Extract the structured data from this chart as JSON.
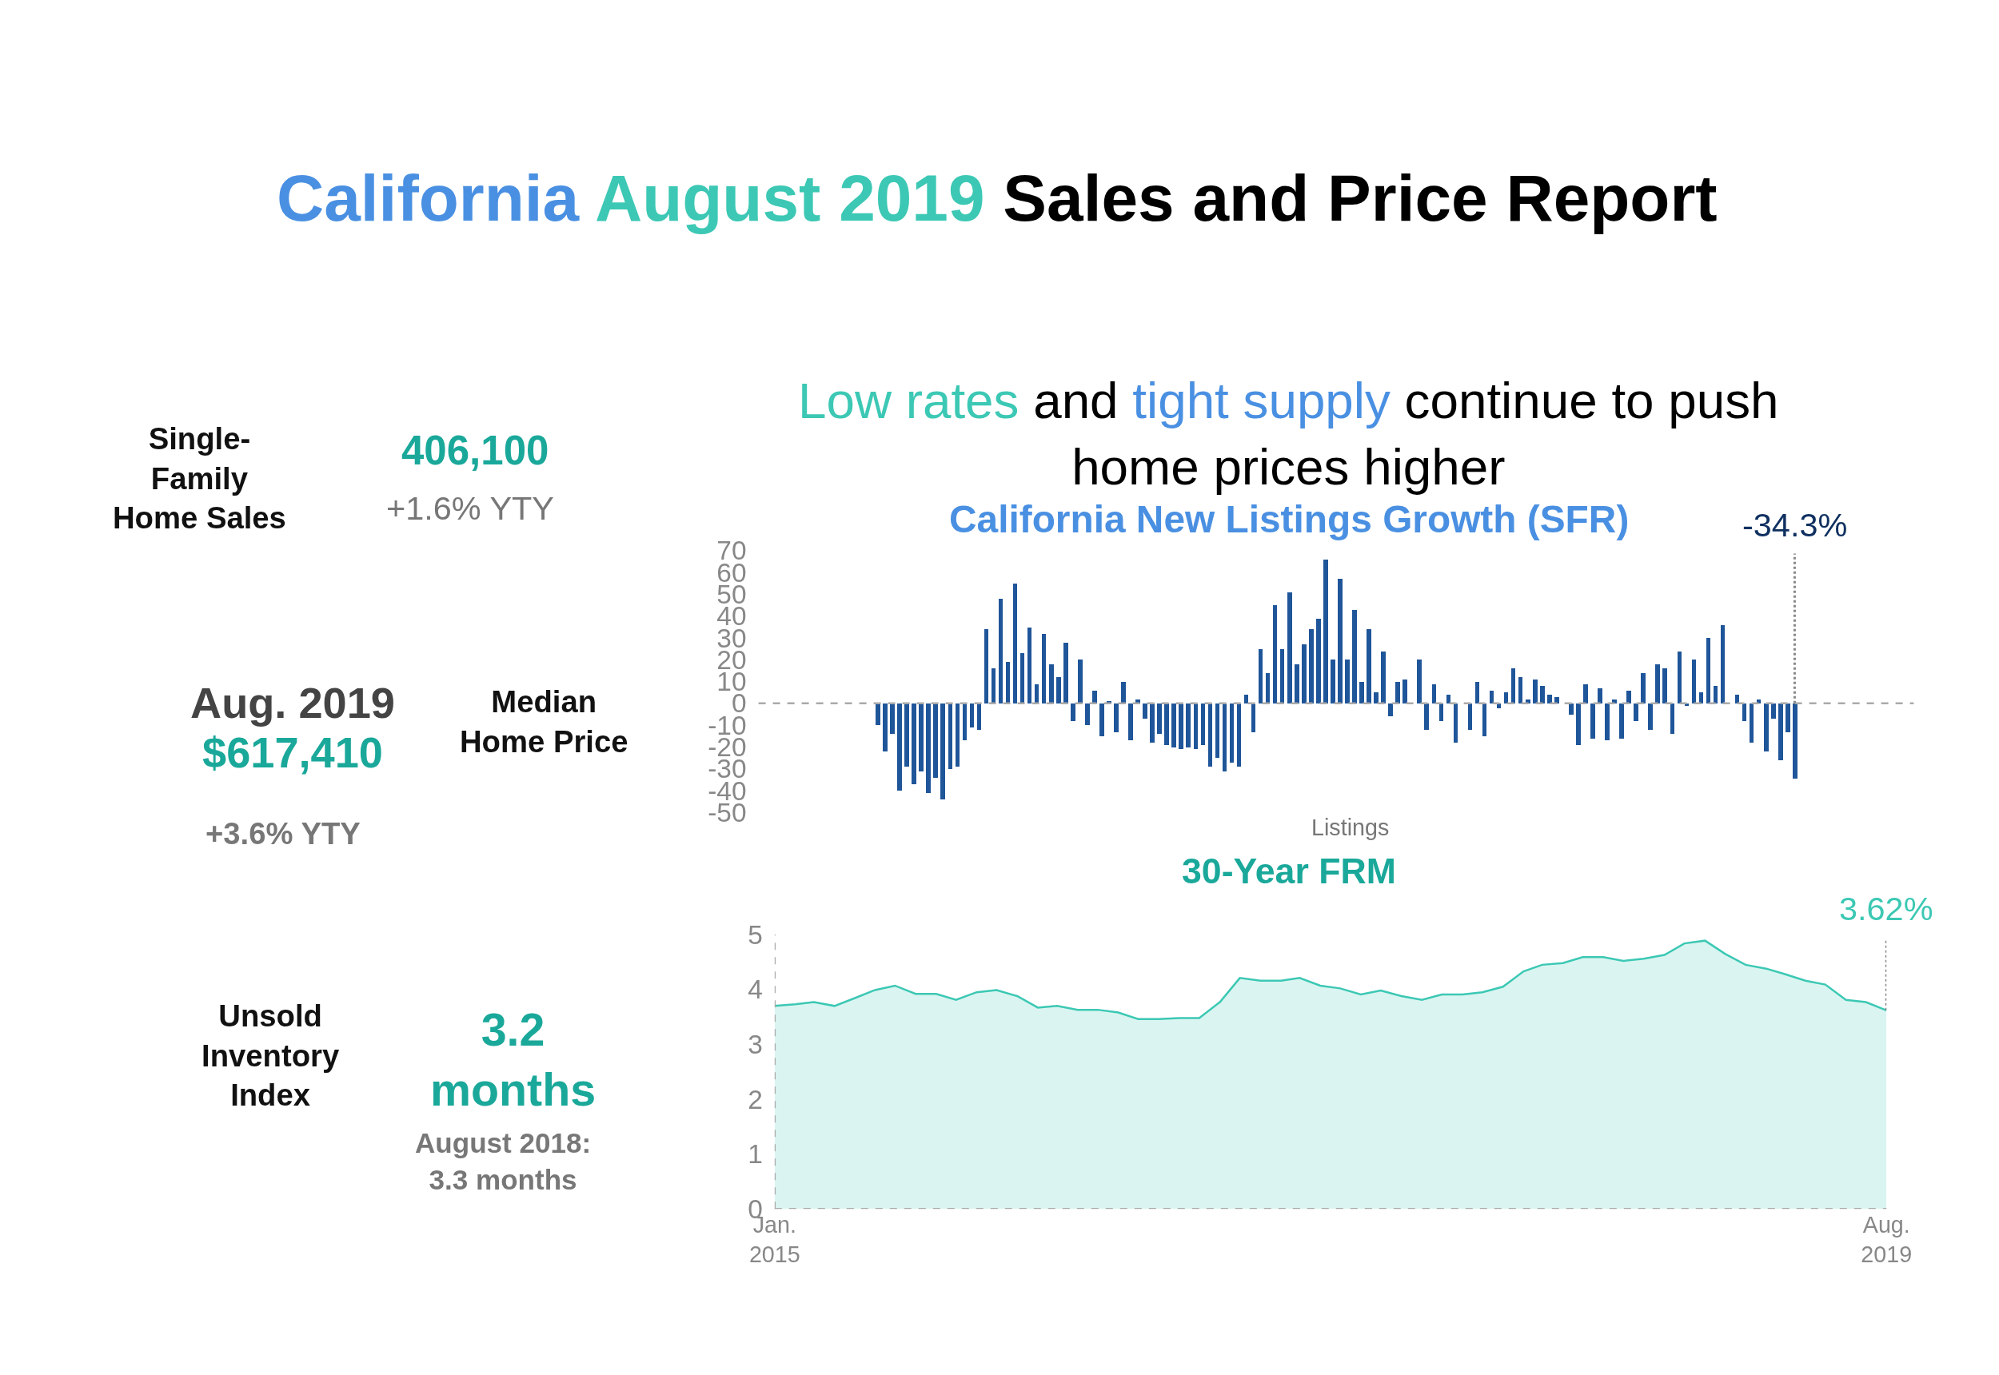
{
  "chart_data": [
    {
      "type": "other",
      "title": "California August 2019 Sales and Price Report",
      "annotations": [
        "Single-\nFamily\nHome Sales",
        "406,100",
        "+1.6% YTY",
        "Aug. 2019",
        "$617,410",
        "Median\nHome Price",
        "+3.6% YTY",
        "Unsold\nInventory\nIndex",
        "3.2\nmonths",
        "August 2018:\n3.3 months"
      ]
    },
    {
      "type": "bar",
      "subtitle": "Low rates and tight supply continue to push\nhome prices higher",
      "title": "California New Listings Growth (SFR)",
      "xlabel": "Listings",
      "categories": [
        null,
        null,
        null,
        null,
        null,
        null,
        null,
        null,
        null,
        null,
        null,
        null,
        null,
        null,
        null,
        null,
        null,
        null,
        null,
        null,
        null,
        null,
        null,
        null,
        null,
        null,
        null,
        null,
        null,
        null,
        null,
        null,
        null,
        null,
        null,
        null,
        null,
        null,
        null,
        null,
        null,
        null,
        null,
        null,
        null,
        null,
        null,
        null,
        null,
        null,
        null,
        null,
        null,
        null,
        null,
        null,
        null,
        null,
        null,
        null,
        null,
        null,
        null,
        null,
        null,
        null,
        null,
        null,
        null,
        null,
        null,
        null,
        null,
        null,
        null,
        null,
        null,
        null,
        null,
        null,
        null,
        null,
        null,
        null,
        null,
        null,
        null,
        null,
        null,
        null,
        null,
        null,
        null,
        null,
        null,
        null,
        null,
        null,
        null,
        null,
        null,
        null,
        null,
        null,
        null,
        null,
        null,
        null,
        null,
        null,
        null,
        null,
        null,
        null,
        null,
        null,
        null,
        null,
        null,
        null,
        null,
        null,
        null,
        null,
        null,
        null,
        null,
        null,
        null,
        null,
        null,
        null,
        null,
        null,
        null,
        null,
        null,
        null,
        null,
        null,
        null,
        null,
        null,
        null,
        null,
        null,
        null,
        null,
        null,
        null,
        null,
        null,
        null,
        null,
        null,
        null,
        null,
        null,
        null,
        null
      ],
      "series": [
        {
          "color": "#1f5599",
          "values": [
            null,
            null,
            null,
            null,
            null,
            null,
            null,
            null,
            null,
            null,
            null,
            null,
            null,
            null,
            null,
            null,
            -10,
            -22,
            -14,
            -40,
            -29,
            -37,
            -31,
            -41,
            -34,
            -44,
            -30,
            -29,
            -17,
            -11,
            -12,
            34,
            16,
            48,
            19,
            55,
            23,
            35,
            9,
            32,
            18,
            12,
            28,
            -8,
            20,
            -10,
            6,
            -15,
            1,
            -13,
            10,
            -17,
            2,
            -7,
            -18,
            -14,
            -19,
            -20,
            -21,
            -20,
            -21,
            -19,
            -29,
            -25,
            -31,
            -27,
            -29,
            4,
            -13,
            25,
            14,
            45,
            25,
            51,
            18,
            27,
            34,
            39,
            66,
            20,
            57,
            20,
            43,
            10,
            34,
            5,
            24,
            -6,
            10,
            11,
            0,
            20,
            -12,
            9,
            -8,
            4,
            -18,
            0,
            -12,
            10,
            -15,
            6,
            -2,
            5,
            16,
            12,
            2,
            11,
            8,
            4,
            3,
            0,
            -5,
            -19,
            9,
            -16,
            7,
            -17,
            2,
            -16,
            6,
            -8,
            14,
            -12,
            18,
            16,
            -14,
            24,
            -1,
            20,
            5,
            30,
            8,
            36,
            0,
            4,
            -8,
            -18,
            2,
            -22,
            -7,
            -26,
            -13,
            -34.3,
            null,
            null,
            null,
            null,
            null,
            null,
            null,
            null,
            null,
            null,
            null,
            null,
            null,
            null,
            null,
            null
          ]
        }
      ],
      "ylim": [
        -50,
        70
      ],
      "yticks": [
        -50,
        -40,
        -30,
        -20,
        -10,
        0,
        10,
        20,
        30,
        40,
        50,
        60,
        70
      ],
      "ref_lines": [
        {
          "axis": "y",
          "value": 0,
          "color": "#aaaaaa",
          "line_style": "dashed"
        }
      ],
      "annotations": [
        "-34.3%"
      ]
    },
    {
      "type": "area",
      "title": "30-Year FRM",
      "x": [
        "2015-01",
        "2015-02",
        "2015-03",
        "2015-04",
        "2015-05",
        "2015-06",
        "2015-07",
        "2015-08",
        "2015-09",
        "2015-10",
        "2015-11",
        "2015-12",
        "2016-01",
        "2016-02",
        "2016-03",
        "2016-04",
        "2016-05",
        "2016-06",
        "2016-07",
        "2016-08",
        "2016-09",
        "2016-10",
        "2016-11",
        "2016-12",
        "2017-01",
        "2017-02",
        "2017-03",
        "2017-04",
        "2017-05",
        "2017-06",
        "2017-07",
        "2017-08",
        "2017-09",
        "2017-10",
        "2017-11",
        "2017-12",
        "2018-01",
        "2018-02",
        "2018-03",
        "2018-04",
        "2018-05",
        "2018-06",
        "2018-07",
        "2018-08",
        "2018-09",
        "2018-10",
        "2018-11",
        "2018-12",
        "2019-01",
        "2019-02",
        "2019-03",
        "2019-04",
        "2019-05",
        "2019-06",
        "2019-07",
        "2019-08"
      ],
      "series": [
        {
          "color": "#3cc8b4",
          "values": [
            3.7,
            3.73,
            3.77,
            3.7,
            3.84,
            3.99,
            4.07,
            3.92,
            3.92,
            3.81,
            3.95,
            3.99,
            3.88,
            3.67,
            3.7,
            3.63,
            3.63,
            3.58,
            3.46,
            3.46,
            3.48,
            3.48,
            3.77,
            4.21,
            4.16,
            4.16,
            4.21,
            4.07,
            4.02,
            3.91,
            3.98,
            3.88,
            3.81,
            3.91,
            3.91,
            3.95,
            4.05,
            4.33,
            4.45,
            4.48,
            4.59,
            4.59,
            4.52,
            4.56,
            4.63,
            4.84,
            4.89,
            4.65,
            4.45,
            4.38,
            4.28,
            4.16,
            4.09,
            3.81,
            3.77,
            3.62
          ]
        }
      ],
      "xlim": [
        "2015-01",
        "2019-08"
      ],
      "xticks": [
        {
          "value": "2015-01",
          "label": "Jan.\n2015"
        },
        {
          "value": "2019-08",
          "label": "Aug.\n2019"
        }
      ],
      "ylim": [
        0,
        5
      ],
      "yticks": [
        0,
        1,
        2,
        3,
        4,
        5
      ],
      "marker": "none",
      "ref_lines": [
        {
          "axis": "y",
          "value": 0,
          "color": "#aaaaaa",
          "line_style": "dashed"
        },
        {
          "axis": "x",
          "value": "2015-01",
          "color": "#aaaaaa",
          "line_style": "dashed"
        }
      ],
      "annotations": [
        {
          "text": "3.62%",
          "x": "2019-08",
          "y": 3.62
        }
      ]
    }
  ]
}
